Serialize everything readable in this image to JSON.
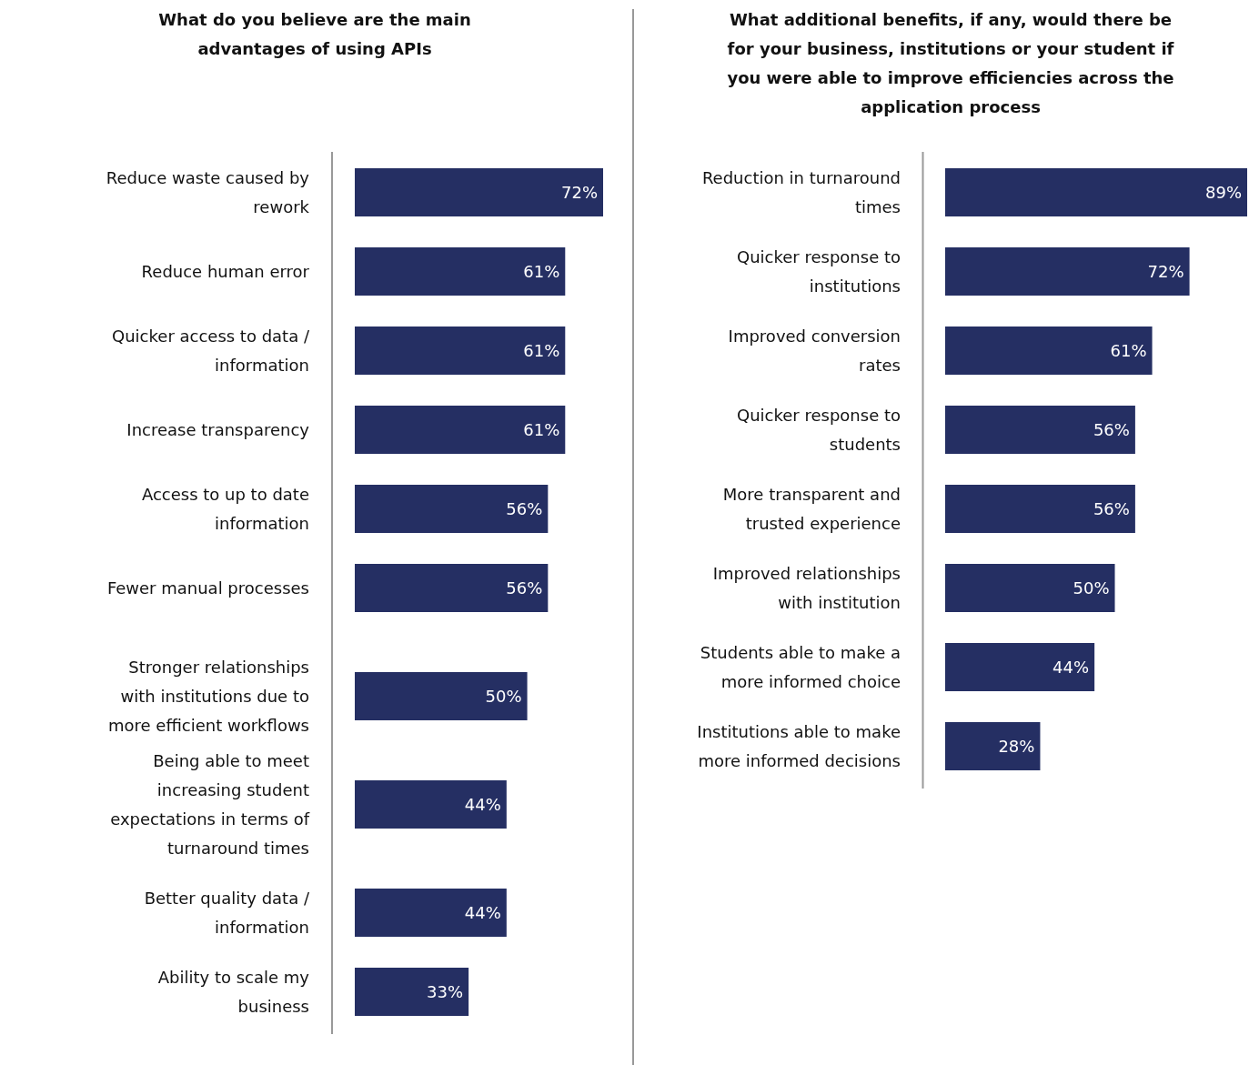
{
  "chart_data": [
    {
      "type": "bar",
      "orientation": "horizontal",
      "title": "What do you believe are the main advantages of using APIs",
      "categories": [
        "Reduce waste caused by rework",
        "Reduce human error",
        "Quicker access to data / information",
        "Increase transparency",
        "Access to up to date information",
        "Fewer manual processes",
        "Stronger relationships with institutions due to more efficient workflows",
        "Being able to meet increasing student expectations in terms of turnaround times",
        "Better quality data / information",
        "Ability to scale my business"
      ],
      "values": [
        72,
        61,
        61,
        61,
        56,
        56,
        50,
        44,
        44,
        33
      ],
      "value_labels": [
        "72%",
        "61%",
        "61%",
        "61%",
        "56%",
        "56%",
        "50%",
        "44%",
        "44%",
        "33%"
      ],
      "color": "#252f63",
      "tick_labels": "y"
    },
    {
      "type": "bar",
      "orientation": "horizontal",
      "title": "What additional benefits, if any, would there be for your business, institutions or your student if you were able to improve efficiencies across the application process",
      "categories": [
        "Reduction in turnaround times",
        "Quicker response to institutions",
        "Improved conversion rates",
        "Quicker response to students",
        "More transparent and trusted experience",
        "Improved relationships with institution",
        "Students able to make a more informed choice",
        "Institutions able to make more informed decisions"
      ],
      "values": [
        89,
        72,
        61,
        56,
        56,
        50,
        44,
        28
      ],
      "value_labels": [
        "89%",
        "72%",
        "61%",
        "56%",
        "56%",
        "50%",
        "44%",
        "28%"
      ],
      "color": "#252f63",
      "tick_labels": "y"
    }
  ]
}
